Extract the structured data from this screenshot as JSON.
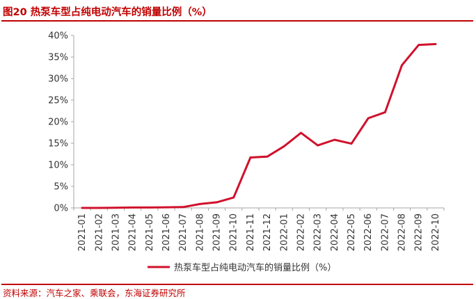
{
  "figure": {
    "title": "图20  热泵车型占纯电动汽车的销量比例（%）",
    "source": "资料来源：汽车之家、乘联会，东海证券研究所"
  },
  "chart_data": {
    "type": "line",
    "title": "图20  热泵车型占纯电动汽车的销量比例（%）",
    "xlabel": "",
    "ylabel": "",
    "ylim": [
      0,
      40
    ],
    "yticks": [
      "0%",
      "5%",
      "10%",
      "15%",
      "20%",
      "25%",
      "30%",
      "35%",
      "40%"
    ],
    "x": [
      "2021-01",
      "2021-02",
      "2021-03",
      "2021-04",
      "2021-05",
      "2021-06",
      "2021-07",
      "2021-08",
      "2021-09",
      "2021-10",
      "2021-11",
      "2021-12",
      "2022-01",
      "2022-02",
      "2022-03",
      "2022-04",
      "2022-05",
      "2022-06",
      "2022-07",
      "2022-08",
      "2022-09",
      "2022-10"
    ],
    "series": [
      {
        "name": "热泵车型占纯电动汽车的销量比例（%）",
        "color": "#d0112b",
        "values": [
          0.0,
          0.0,
          0.05,
          0.1,
          0.1,
          0.15,
          0.2,
          0.9,
          1.3,
          2.4,
          11.7,
          11.9,
          14.3,
          17.4,
          14.5,
          15.8,
          14.9,
          20.8,
          22.2,
          33.1,
          37.8,
          38.0
        ]
      }
    ],
    "grid": false,
    "legend": "bottom"
  }
}
